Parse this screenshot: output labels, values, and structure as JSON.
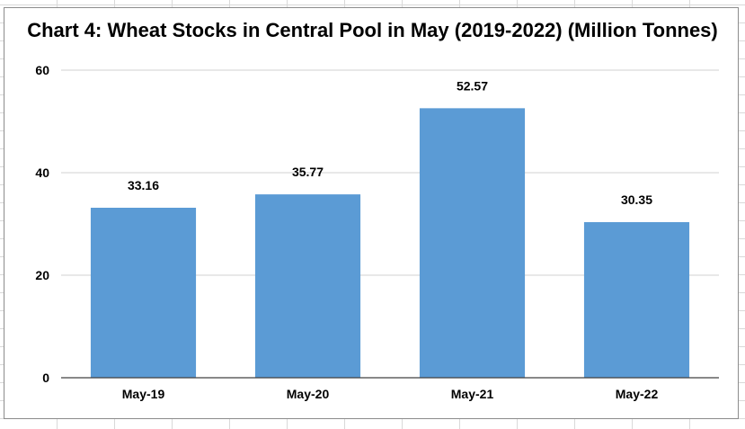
{
  "chart_data": {
    "type": "bar",
    "title": "Chart 4: Wheat Stocks in Central Pool in May (2019-2022) (Million Tonnes)",
    "categories": [
      "May-19",
      "May-20",
      "May-21",
      "May-22"
    ],
    "series": [
      {
        "name": "Wheat Stocks",
        "values": [
          33.16,
          35.77,
          52.57,
          30.35
        ],
        "labels": [
          "33.16",
          "35.77",
          "52.57",
          "30.35"
        ]
      }
    ],
    "xlabel": "",
    "ylabel": "",
    "ylim": [
      0,
      60
    ],
    "yticks": [
      0,
      20,
      40,
      60
    ],
    "grid": true,
    "legend": "none",
    "bar_color": "#5b9bd5"
  }
}
